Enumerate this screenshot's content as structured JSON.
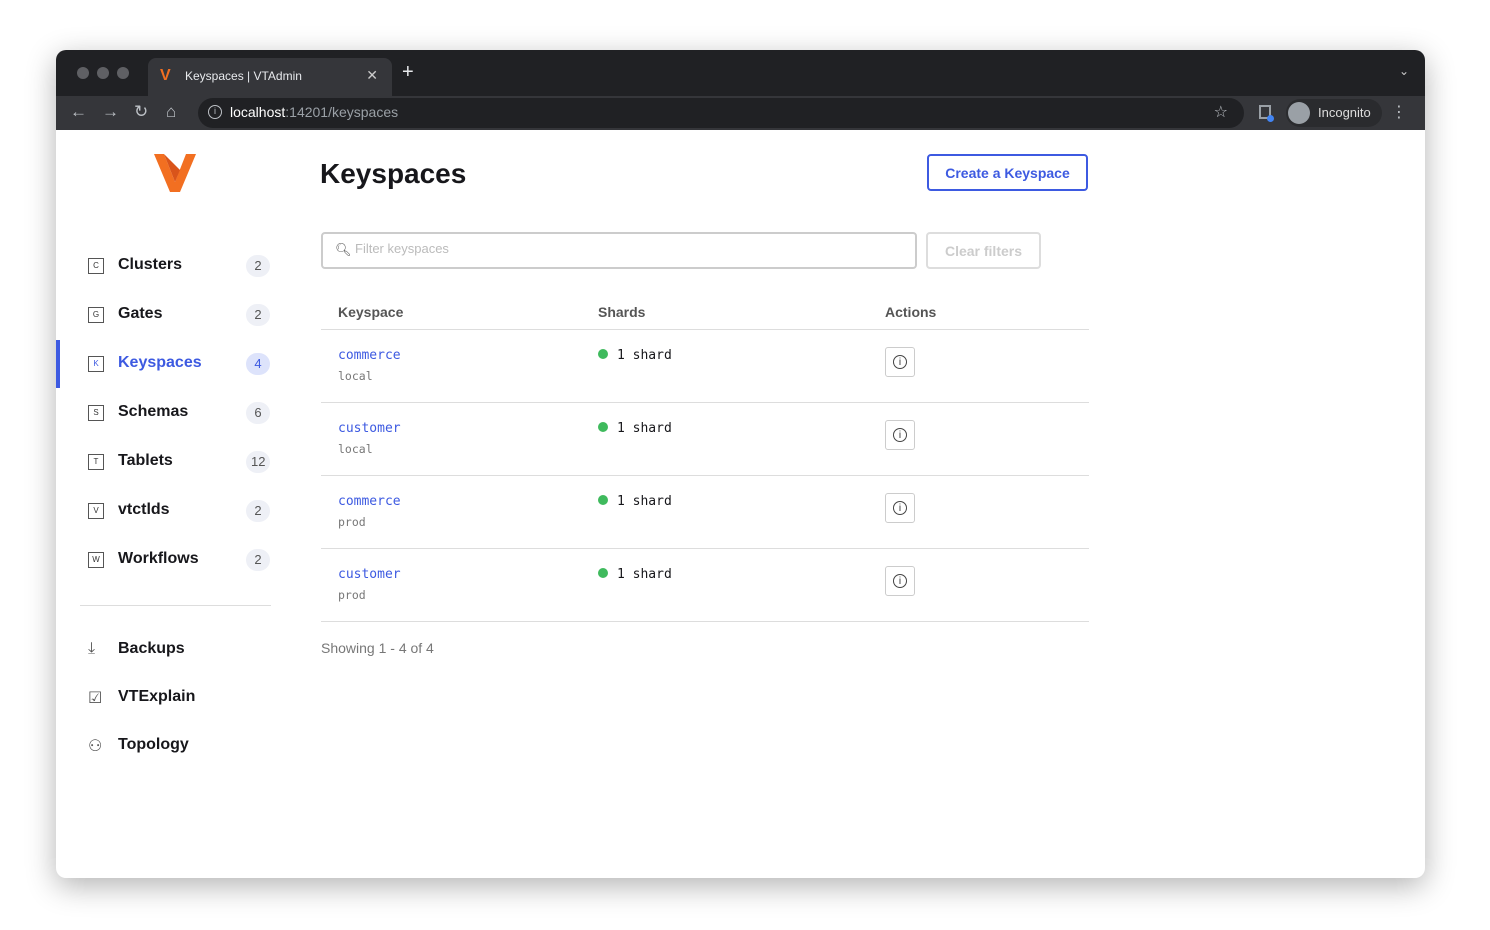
{
  "browser": {
    "tab_title": "Keyspaces | VTAdmin",
    "url_host": "localhost",
    "url_rest": ":14201/keyspaces",
    "profile": "Incognito"
  },
  "sidebar": {
    "items": [
      {
        "key": "C",
        "label": "Clusters",
        "count": "2"
      },
      {
        "key": "G",
        "label": "Gates",
        "count": "2"
      },
      {
        "key": "K",
        "label": "Keyspaces",
        "count": "4",
        "active": true
      },
      {
        "key": "S",
        "label": "Schemas",
        "count": "6"
      },
      {
        "key": "T",
        "label": "Tablets",
        "count": "12"
      },
      {
        "key": "V",
        "label": "vtctlds",
        "count": "2"
      },
      {
        "key": "W",
        "label": "Workflows",
        "count": "2"
      }
    ],
    "tools": [
      {
        "label": "Backups",
        "icon": "download-icon"
      },
      {
        "label": "VTExplain",
        "icon": "checklist-icon"
      },
      {
        "label": "Topology",
        "icon": "topology-icon"
      }
    ]
  },
  "main": {
    "title": "Keyspaces",
    "create_label": "Create a Keyspace",
    "filter_placeholder": "Filter keyspaces",
    "clear_label": "Clear filters",
    "columns": [
      "Keyspace",
      "Shards",
      "Actions"
    ],
    "rows": [
      {
        "keyspace": "commerce",
        "cluster": "local",
        "shards": "1 shard"
      },
      {
        "keyspace": "customer",
        "cluster": "local",
        "shards": "1 shard"
      },
      {
        "keyspace": "commerce",
        "cluster": "prod",
        "shards": "1 shard"
      },
      {
        "keyspace": "customer",
        "cluster": "prod",
        "shards": "1 shard"
      }
    ],
    "showing": "Showing 1 - 4 of 4"
  },
  "colors": {
    "accent": "#3d5ae1",
    "status_ok": "#3fba5d",
    "logo": "#f26f21"
  }
}
